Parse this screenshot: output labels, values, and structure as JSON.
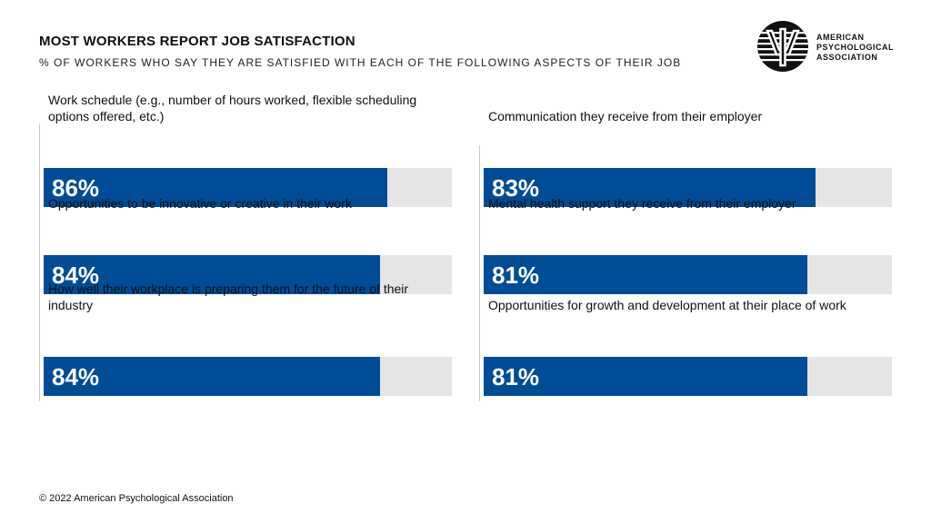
{
  "header": {
    "title": "MOST WORKERS REPORT JOB SATISFACTION",
    "subtitle": "% OF WORKERS WHO SAY THEY ARE SATISFIED WITH EACH OF THE FOLLOWING ASPECTS OF THEIR JOB"
  },
  "logo": {
    "line1": "AMERICAN",
    "line2": "PSYCHOLOGICAL",
    "line3": "ASSOCIATION",
    "icon": "psi-logo-icon"
  },
  "colors": {
    "bar": "#004c97",
    "track": "#e5e5e5"
  },
  "chart_data": {
    "type": "bar",
    "orientation": "horizontal",
    "categories": [
      "Work schedule (e.g., number of hours worked, flexible scheduling options offered, etc.)",
      "Opportunities to be innovative or creative in their work",
      "How well their workplace is preparing them for the future of their industry",
      "Communication they receive from their employer",
      "Mental health support they receive from their employer",
      "Opportunities for growth and development at their place of work"
    ],
    "values": [
      86,
      84,
      84,
      83,
      81,
      81
    ],
    "labels": [
      "86%",
      "84%",
      "84%",
      "83%",
      "81%",
      "81%"
    ],
    "title": "MOST WORKERS REPORT JOB SATISFACTION",
    "xlim": [
      0,
      100
    ],
    "grid": false,
    "legend": "none"
  },
  "footer": {
    "copyright": "© 2022 American Psychological Association"
  }
}
